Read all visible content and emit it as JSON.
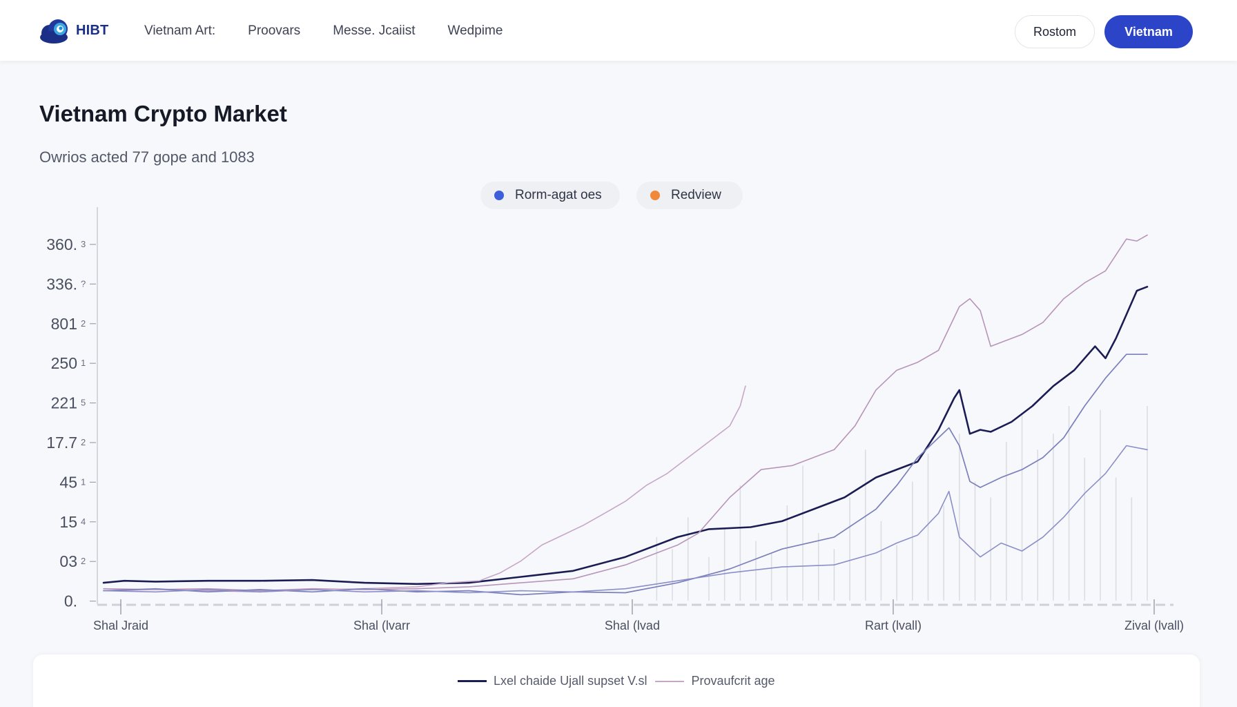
{
  "header": {
    "logo_text": "HIBT",
    "nav": [
      "Vietnam Art:",
      "Proovars",
      "Messe. Jcaiist",
      "Wedpime"
    ],
    "secondary_button": "Rostom",
    "primary_button": "Vietnam"
  },
  "page": {
    "title": "Vietnam Crypto Market",
    "subtitle": "Owrios acted 77 gope and 1083"
  },
  "legend_top": [
    {
      "label": "Rorm-agat oes",
      "color": "#3d5fd9"
    },
    {
      "label": "Redview",
      "color": "#f0893a"
    }
  ],
  "legend_bottom": [
    {
      "label": "Lxel chaide Ujall supset V.sl",
      "color": "#1c1c55"
    },
    {
      "label": "Provaufcrit age",
      "color": "#c7a7c7"
    }
  ],
  "colors": {
    "brand": "#2c45c8",
    "line_dark": "#1c1c55",
    "line_mauve": "#b794b8",
    "line_indigo": "#7b7fbb"
  },
  "chart_data": {
    "type": "line",
    "title": "",
    "xlabel": "",
    "ylabel": "",
    "y_ticks": [
      {
        "label": "360.",
        "sub": "3"
      },
      {
        "label": "336.",
        "sub": "?"
      },
      {
        "label": "801",
        "sub": "2"
      },
      {
        "label": "250",
        "sub": "1"
      },
      {
        "label": "221",
        "sub": "5"
      },
      {
        "label": "17.7",
        "sub": "2"
      },
      {
        "label": "45",
        "sub": "1"
      },
      {
        "label": "15",
        "sub": "4"
      },
      {
        "label": "03",
        "sub": "2"
      },
      {
        "label": "0.",
        "sub": ""
      }
    ],
    "x_ticks": [
      {
        "label": "Shal Jraid",
        "x": 0
      },
      {
        "label": "Shal (lvarr",
        "x": 25
      },
      {
        "label": "Shal (lvad",
        "x": 49
      },
      {
        "label": "Rart (lvall)",
        "x": 74
      },
      {
        "label": "Zival (lvall)",
        "x": 99
      }
    ],
    "xlim": [
      0,
      100
    ],
    "ylim": [
      0,
      9
    ],
    "grid": false,
    "series": [
      {
        "name": "Lxel chaide Ujall supset V.sl",
        "color": "#1c1c55",
        "width": 2.6,
        "x": [
          0,
          2,
          5,
          10,
          15,
          20,
          25,
          30,
          35,
          40,
          45,
          50,
          55,
          58,
          62,
          65,
          68,
          71,
          74,
          76,
          78,
          80,
          81.5,
          82,
          83,
          84,
          85,
          87,
          89,
          91,
          93,
          95,
          96,
          97,
          98,
          99,
          100
        ],
        "y": [
          0.45,
          0.5,
          0.48,
          0.5,
          0.5,
          0.52,
          0.45,
          0.42,
          0.45,
          0.6,
          0.75,
          1.1,
          1.6,
          1.8,
          1.85,
          2.0,
          2.3,
          2.6,
          3.1,
          3.3,
          3.5,
          4.3,
          5.1,
          5.3,
          4.2,
          4.3,
          4.25,
          4.5,
          4.9,
          5.4,
          5.8,
          6.4,
          6.1,
          6.6,
          7.2,
          7.8,
          7.9
        ]
      },
      {
        "name": "Provaufcrit age",
        "color": "#b794b8",
        "width": 1.6,
        "x": [
          0,
          5,
          10,
          15,
          20,
          25,
          30,
          35,
          40,
          45,
          50,
          55,
          57,
          60,
          63,
          66,
          68,
          70,
          72,
          74,
          76,
          78,
          80,
          82,
          83,
          84,
          85,
          86,
          88,
          90,
          92,
          94,
          96,
          98,
          99,
          100
        ],
        "y": [
          0.3,
          0.28,
          0.3,
          0.25,
          0.3,
          0.28,
          0.3,
          0.35,
          0.45,
          0.55,
          0.9,
          1.4,
          1.7,
          2.6,
          3.3,
          3.4,
          3.6,
          3.8,
          4.4,
          5.3,
          5.8,
          6.0,
          6.3,
          7.4,
          7.6,
          7.3,
          6.4,
          6.5,
          6.7,
          7.0,
          7.6,
          8.0,
          8.3,
          9.1,
          9.05,
          9.2
        ]
      },
      {
        "name": "",
        "color": "#c7a7c7",
        "width": 1.6,
        "x": [
          0,
          5,
          10,
          15,
          20,
          25,
          30,
          33,
          36,
          38,
          40,
          42,
          44,
          46,
          48,
          50,
          52,
          54,
          56,
          58,
          60,
          61,
          61.5
        ],
        "y": [
          0.25,
          0.28,
          0.25,
          0.22,
          0.28,
          0.3,
          0.35,
          0.45,
          0.5,
          0.7,
          1.0,
          1.4,
          1.65,
          1.9,
          2.2,
          2.5,
          2.9,
          3.2,
          3.6,
          4.0,
          4.4,
          4.9,
          5.4
        ]
      },
      {
        "name": "",
        "color": "#7b7fbb",
        "width": 1.7,
        "x": [
          0,
          5,
          10,
          15,
          20,
          25,
          30,
          35,
          40,
          45,
          50,
          55,
          60,
          65,
          70,
          74,
          76,
          78,
          80,
          81,
          82,
          83,
          84,
          86,
          88,
          90,
          92,
          94,
          96,
          98,
          100
        ],
        "y": [
          0.25,
          0.3,
          0.22,
          0.28,
          0.22,
          0.3,
          0.22,
          0.25,
          0.15,
          0.22,
          0.2,
          0.45,
          0.8,
          1.3,
          1.6,
          2.3,
          2.9,
          3.6,
          4.1,
          4.35,
          3.9,
          3.0,
          2.85,
          3.1,
          3.3,
          3.6,
          4.1,
          4.9,
          5.6,
          6.2,
          6.2
        ]
      },
      {
        "name": "",
        "color": "#8a8ec8",
        "width": 1.6,
        "x": [
          0,
          5,
          10,
          15,
          20,
          25,
          30,
          35,
          40,
          45,
          50,
          55,
          60,
          65,
          70,
          74,
          76,
          78,
          80,
          81,
          82,
          84,
          86,
          88,
          90,
          92,
          94,
          96,
          98,
          100
        ],
        "y": [
          0.25,
          0.22,
          0.28,
          0.22,
          0.28,
          0.22,
          0.25,
          0.2,
          0.25,
          0.22,
          0.3,
          0.5,
          0.7,
          0.85,
          0.9,
          1.2,
          1.45,
          1.65,
          2.2,
          2.75,
          1.6,
          1.1,
          1.45,
          1.25,
          1.6,
          2.1,
          2.7,
          3.2,
          3.9,
          3.8
        ]
      }
    ],
    "volume_bars": {
      "color": "#dcdde3",
      "x": [
        53,
        54.5,
        56,
        58,
        59.5,
        61,
        62.5,
        64,
        65.5,
        67,
        68.5,
        70,
        71.5,
        73,
        74.5,
        76,
        77.5,
        79,
        80.5,
        82,
        83.5,
        85,
        86.5,
        88,
        89.5,
        91,
        92.5,
        94,
        95.5,
        97,
        98.5,
        100
      ],
      "y": [
        1.6,
        1.3,
        2.1,
        1.1,
        1.8,
        2.9,
        1.5,
        1.2,
        2.4,
        3.4,
        1.7,
        1.3,
        2.6,
        3.8,
        2.0,
        1.4,
        3.0,
        3.7,
        2.4,
        4.2,
        3.0,
        2.6,
        4.0,
        4.7,
        3.8,
        4.2,
        4.9,
        3.6,
        4.8,
        3.1,
        2.6,
        4.9
      ]
    }
  }
}
